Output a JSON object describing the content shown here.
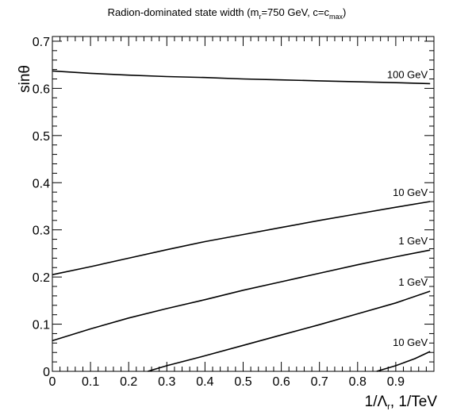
{
  "chart_data": {
    "type": "line",
    "title": "Radion-dominated state width (m",
    "title_parts": {
      "p1": "Radion-dominated state width (m",
      "sub_r": "r",
      "p2": "=750 GeV, c=c",
      "sub_max": "max",
      "p3": ")"
    },
    "xlabel": "1/Λ",
    "xlabel_sub": "r",
    "xlabel_tail": ", 1/TeV",
    "ylabel": "sinθ",
    "xlim": [
      0,
      1
    ],
    "ylim": [
      0,
      0.71
    ],
    "x_major_ticks": [
      0,
      0.1,
      0.2,
      0.3,
      0.4,
      0.5,
      0.6,
      0.7,
      0.8,
      0.9
    ],
    "x_tick_labels": [
      "0",
      "0.1",
      "0.2",
      "0.3",
      "0.4",
      "0.5",
      "0.6",
      "0.7",
      "0.8",
      "0.9"
    ],
    "y_major_ticks": [
      0,
      0.1,
      0.2,
      0.3,
      0.4,
      0.5,
      0.6,
      0.7
    ],
    "y_tick_labels": [
      "0",
      "0.1",
      "0.2",
      "0.3",
      "0.4",
      "0.5",
      "0.6",
      "0.7"
    ],
    "grid": false,
    "series": [
      {
        "name": "100 GeV",
        "x": [
          0,
          0.1,
          0.2,
          0.3,
          0.4,
          0.5,
          0.6,
          0.7,
          0.8,
          0.9,
          0.99
        ],
        "y": [
          0.637,
          0.632,
          0.628,
          0.625,
          0.623,
          0.62,
          0.618,
          0.616,
          0.614,
          0.612,
          0.61
        ]
      },
      {
        "name": "10 GeV",
        "x": [
          0,
          0.1,
          0.2,
          0.3,
          0.4,
          0.5,
          0.6,
          0.7,
          0.8,
          0.9,
          0.99
        ],
        "y": [
          0.205,
          0.222,
          0.24,
          0.258,
          0.275,
          0.29,
          0.305,
          0.32,
          0.334,
          0.348,
          0.36
        ]
      },
      {
        "name": "1 GeV",
        "x": [
          0,
          0.1,
          0.2,
          0.3,
          0.4,
          0.5,
          0.6,
          0.7,
          0.8,
          0.9,
          0.99
        ],
        "y": [
          0.065,
          0.09,
          0.113,
          0.133,
          0.152,
          0.172,
          0.19,
          0.208,
          0.226,
          0.243,
          0.257
        ]
      },
      {
        "name": "1 GeV",
        "x": [
          0.25,
          0.3,
          0.4,
          0.5,
          0.6,
          0.7,
          0.8,
          0.9,
          0.99
        ],
        "y": [
          0.0,
          0.012,
          0.033,
          0.055,
          0.077,
          0.099,
          0.122,
          0.145,
          0.17
        ]
      },
      {
        "name": "10 GeV",
        "x": [
          0.85,
          0.9,
          0.95,
          0.99
        ],
        "y": [
          0.0,
          0.012,
          0.027,
          0.042
        ]
      }
    ]
  }
}
